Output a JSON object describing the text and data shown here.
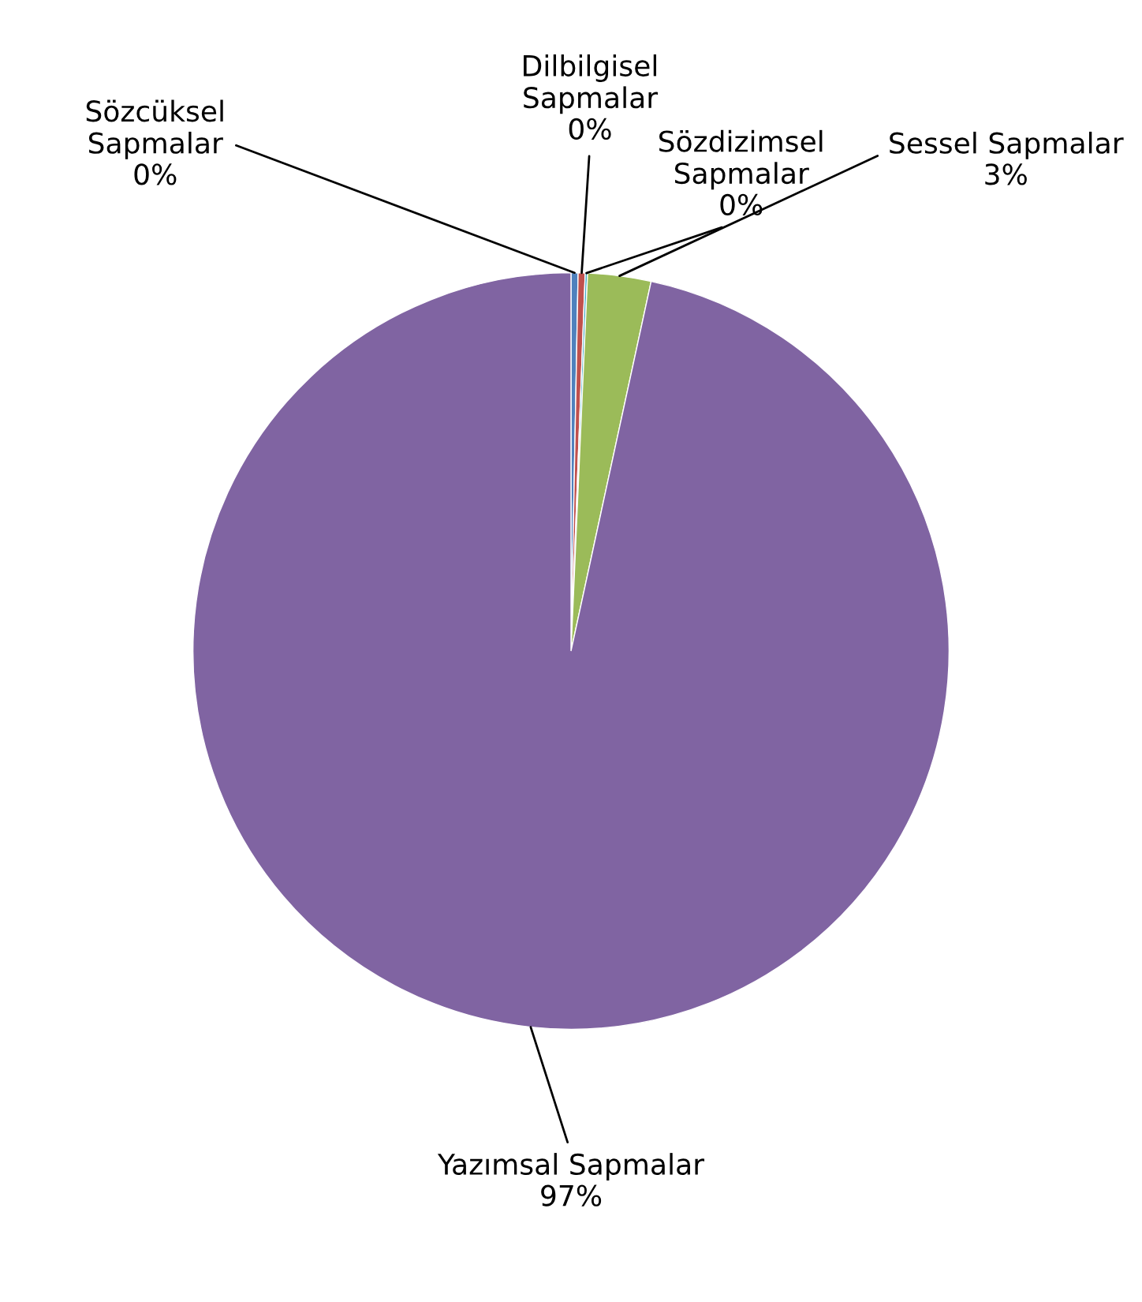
{
  "chart_data": {
    "type": "pie",
    "categories": [
      "Sözcüksel Sapmalar",
      "Dilbilgisel Sapmalar",
      "Sözdizimsel Sapmalar",
      "Sessel Sapmalar",
      "Yazımsal Sapmalar"
    ],
    "values": [
      0.3,
      0.3,
      0.1,
      2.7,
      96.6
    ],
    "value_labels": [
      "0%",
      "0%",
      "0%",
      "3%",
      "97%"
    ],
    "colors": [
      "#4f81bd",
      "#c0504d",
      "#4bacc6",
      "#9bbb59",
      "#8064a2"
    ],
    "data_labels": true,
    "legend": false
  }
}
